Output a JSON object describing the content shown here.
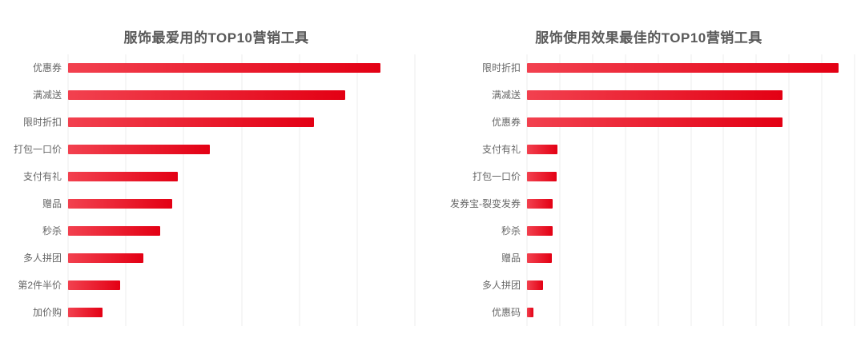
{
  "page": {
    "background": "#ffffff"
  },
  "chart_data": [
    {
      "type": "bar",
      "orientation": "horizontal",
      "title": "服饰最爱用的TOP10营销工具",
      "categories": [
        "优惠券",
        "满减送",
        "限时折扣",
        "打包一口价",
        "支付有礼",
        "赠品",
        "秒杀",
        "多人拼团",
        "第2件半价",
        "加价购"
      ],
      "values": [
        5.4,
        4.8,
        4.25,
        2.45,
        1.9,
        1.8,
        1.6,
        1.3,
        0.9,
        0.6
      ],
      "xlabel": "",
      "ylabel": "",
      "xlim": [
        0,
        6
      ],
      "gridline_count": 7,
      "grid": "vertical-only",
      "tick_labels_visible": false,
      "value_labels_visible": false,
      "legend": "none",
      "bar_gradient": [
        "#f2414f",
        "#e30014"
      ],
      "title_color": "#595959",
      "label_color": "#666666",
      "gridline_color": "#ececec"
    },
    {
      "type": "bar",
      "orientation": "horizontal",
      "title": "服饰使用效果最佳的TOP10营销工具",
      "categories": [
        "限时折扣",
        "满减送",
        "优惠券",
        "支付有礼",
        "打包一口价",
        "发券宝-裂变发券",
        "秒杀",
        "赠品",
        "多人拼团",
        "优惠码"
      ],
      "values": [
        9.5,
        7.8,
        7.8,
        0.93,
        0.9,
        0.78,
        0.78,
        0.76,
        0.49,
        0.2
      ],
      "xlabel": "",
      "ylabel": "",
      "xlim": [
        0,
        10
      ],
      "gridline_count": 11,
      "grid": "vertical-only",
      "tick_labels_visible": false,
      "value_labels_visible": false,
      "legend": "none",
      "bar_gradient": [
        "#f2414f",
        "#e30014"
      ],
      "title_color": "#595959",
      "label_color": "#666666",
      "gridline_color": "#ececec"
    }
  ]
}
